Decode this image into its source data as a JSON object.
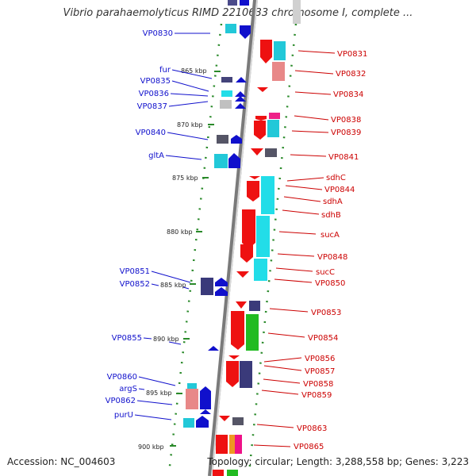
{
  "title": "Vibrio parahaemolyticus RIMD 2210633 chromosome I, complete ...",
  "accession_label": "Accession: NC_004603",
  "topology_label": "Topology: circular; Length: 3,288,558 bp; Genes: 3,223",
  "colors": {
    "left_label": "#1010cc",
    "right_label": "#cc0000",
    "backbone": "#888888",
    "tick": "#2a8a2a"
  },
  "kbp_ticks": [
    "865 kbp",
    "870 kbp",
    "875 kbp",
    "880 kbp",
    "885 kbp",
    "890 kbp",
    "895 kbp",
    "900 kbp"
  ],
  "left_genes": [
    "VP0830",
    "fur",
    "VP0835",
    "VP0836",
    "VP0837",
    "VP0840",
    "gltA",
    "VP0851",
    "VP0852",
    "VP0855",
    "VP0860",
    "argS",
    "VP0862",
    "purU"
  ],
  "right_genes": [
    "VP0831",
    "VP0832",
    "VP0834",
    "VP0838",
    "VP0839",
    "VP0841",
    "sdhC",
    "VP0844",
    "sdhA",
    "sdhB",
    "sucA",
    "VP0848",
    "sucC",
    "VP0850",
    "VP0853",
    "VP0854",
    "VP0856",
    "VP0857",
    "VP0858",
    "VP0859",
    "VP0863",
    "VP0865"
  ]
}
